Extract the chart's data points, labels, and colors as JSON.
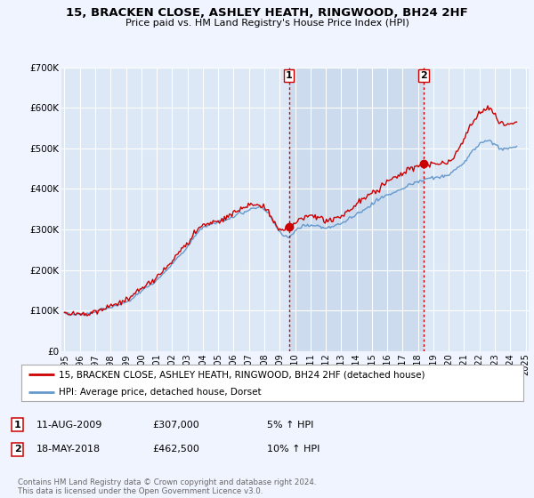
{
  "title": "15, BRACKEN CLOSE, ASHLEY HEATH, RINGWOOD, BH24 2HF",
  "subtitle": "Price paid vs. HM Land Registry's House Price Index (HPI)",
  "ylim": [
    0,
    700000
  ],
  "yticks": [
    0,
    100000,
    200000,
    300000,
    400000,
    500000,
    600000,
    700000
  ],
  "ytick_labels": [
    "£0",
    "£100K",
    "£200K",
    "£300K",
    "£400K",
    "£500K",
    "£600K",
    "£700K"
  ],
  "background_color": "#f0f4ff",
  "plot_bg_color": "#dce8f5",
  "shade_color": "#ccdcee",
  "grid_color": "#ffffff",
  "red_line_color": "#cc0000",
  "blue_line_color": "#6699cc",
  "vline_color": "#cc0000",
  "marker1_x": 2009.6,
  "marker1_y": 307000,
  "marker2_x": 2018.38,
  "marker2_y": 462500,
  "legend_label_red": "15, BRACKEN CLOSE, ASHLEY HEATH, RINGWOOD, BH24 2HF (detached house)",
  "legend_label_blue": "HPI: Average price, detached house, Dorset",
  "note1_date": "11-AUG-2009",
  "note1_price": "£307,000",
  "note1_info": "5% ↑ HPI",
  "note2_date": "18-MAY-2018",
  "note2_price": "£462,500",
  "note2_info": "10% ↑ HPI",
  "footer": "Contains HM Land Registry data © Crown copyright and database right 2024.\nThis data is licensed under the Open Government Licence v3.0.",
  "xtick_years": [
    1995,
    1996,
    1997,
    1998,
    1999,
    2000,
    2001,
    2002,
    2003,
    2004,
    2005,
    2006,
    2007,
    2008,
    2009,
    2010,
    2011,
    2012,
    2013,
    2014,
    2015,
    2016,
    2017,
    2018,
    2019,
    2020,
    2021,
    2022,
    2023,
    2024,
    2025
  ],
  "xlim": [
    1994.8,
    2025.2
  ]
}
